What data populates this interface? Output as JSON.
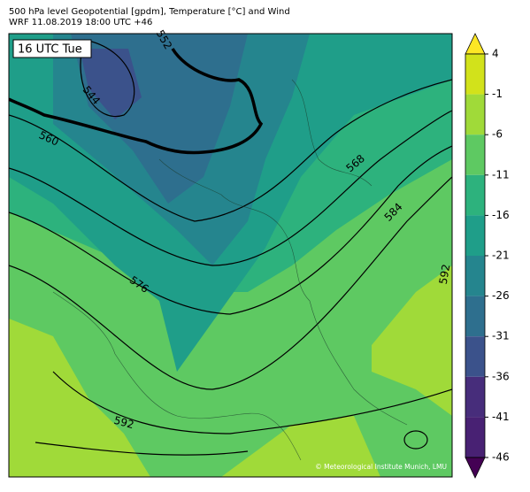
{
  "header": {
    "title": "500 hPa level Geopotential [gpdm], Temperature [°C] and Wind",
    "subtitle": "WRF 11.08.2019 18:00 UTC +46"
  },
  "map": {
    "time_label": "16 UTC Tue",
    "contour_labels": [
      552,
      544,
      560,
      568,
      584,
      576,
      592,
      592
    ],
    "credit": "© Meteorological Institute Munich, LMU"
  },
  "colorbar": {
    "ticks": [
      4,
      -1,
      -6,
      -11,
      -16,
      -21,
      -26,
      -31,
      -36,
      -41,
      -46
    ],
    "colors": [
      "#fde725",
      "#d2e21b",
      "#a0da39",
      "#5ec962",
      "#2db27d",
      "#1f9e89",
      "#25858e",
      "#2e6f8e",
      "#3b528b",
      "#472d7b",
      "#482173",
      "#440154"
    ]
  }
}
